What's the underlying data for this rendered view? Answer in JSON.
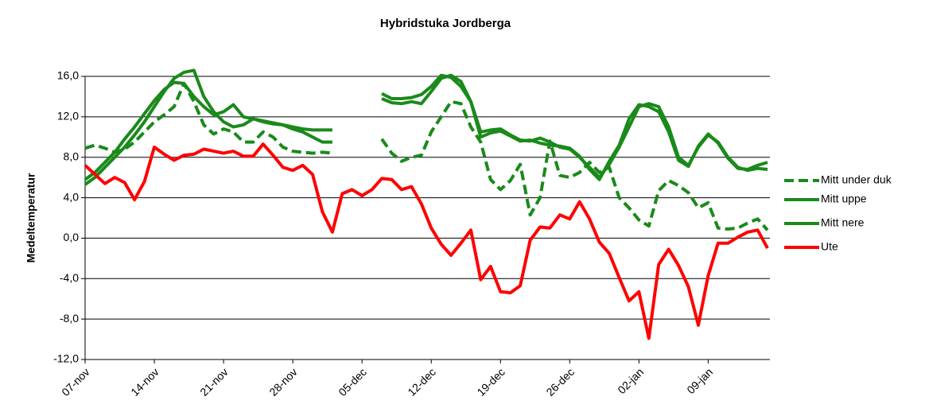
{
  "chart_data": {
    "type": "line",
    "title": "Hybridstuka Jordberga",
    "y_label": "Medeltemperatur",
    "categories": [
      "07-nov",
      null,
      null,
      null,
      null,
      null,
      null,
      "14-nov",
      null,
      null,
      null,
      null,
      null,
      null,
      "21-nov",
      null,
      null,
      null,
      null,
      null,
      null,
      "28-nov",
      null,
      null,
      null,
      null,
      null,
      null,
      "05-dec",
      null,
      null,
      null,
      null,
      null,
      null,
      "12-dec",
      null,
      null,
      null,
      null,
      null,
      null,
      "19-dec",
      null,
      null,
      null,
      null,
      null,
      null,
      "26-dec",
      null,
      null,
      null,
      null,
      null,
      null,
      "02-jan",
      null,
      null,
      null,
      null,
      null,
      null,
      "09-jan",
      null,
      null,
      null,
      null,
      null,
      null
    ],
    "series": [
      {
        "name": "Mitt under duk",
        "color": "#1a8a1a",
        "dashed": true,
        "values": [
          8.9,
          9.2,
          8.9,
          8.5,
          8.8,
          9.5,
          10.5,
          11.5,
          12.2,
          13.0,
          15.3,
          13.5,
          11.2,
          10.3,
          10.8,
          10.5,
          9.5,
          9.5,
          10.5,
          10.0,
          9.0,
          8.6,
          8.5,
          8.4,
          8.5,
          8.4,
          null,
          null,
          null,
          null,
          9.8,
          8.4,
          7.6,
          8.0,
          8.2,
          10.5,
          12.0,
          13.5,
          13.3,
          11.0,
          9.5,
          5.8,
          4.8,
          5.7,
          7.3,
          2.3,
          4.0,
          9.6,
          6.2,
          6.0,
          6.5,
          7.5,
          6.5,
          7.0,
          4.0,
          3.0,
          1.8,
          1.2,
          4.7,
          5.7,
          5.2,
          4.5,
          3.0,
          3.5,
          1.0,
          0.9,
          1.0,
          1.5,
          1.9,
          0.8
        ]
      },
      {
        "name": "Mitt uppe",
        "color": "#1a8a1a",
        "dashed": false,
        "values": [
          5.3,
          6.0,
          7.0,
          8.0,
          9.0,
          10.2,
          11.5,
          13.0,
          14.5,
          15.8,
          16.4,
          16.6,
          14.0,
          12.5,
          11.5,
          11.0,
          11.2,
          11.8,
          11.5,
          11.3,
          11.2,
          10.8,
          10.5,
          10.0,
          9.5,
          9.5,
          null,
          null,
          null,
          null,
          14.3,
          13.8,
          13.8,
          13.9,
          14.2,
          15.0,
          16.1,
          15.9,
          15.0,
          13.5,
          10.5,
          10.7,
          10.8,
          10.2,
          9.7,
          9.6,
          9.9,
          9.5,
          9.0,
          8.8,
          8.0,
          7.0,
          6.0,
          7.3,
          9.0,
          11.0,
          13.0,
          13.3,
          13.0,
          11.0,
          8.0,
          7.2,
          9.0,
          10.2,
          9.5,
          8.0,
          7.0,
          6.7,
          6.9,
          6.8
        ]
      },
      {
        "name": "Mitt nere",
        "color": "#1a8a1a",
        "dashed": false,
        "values": [
          5.8,
          6.5,
          7.5,
          8.5,
          9.8,
          11.0,
          12.3,
          13.6,
          14.7,
          15.4,
          15.3,
          14.0,
          13.0,
          12.2,
          12.5,
          13.2,
          12.0,
          11.8,
          11.6,
          11.4,
          11.2,
          11.0,
          10.8,
          10.7,
          10.7,
          10.7,
          null,
          null,
          null,
          null,
          13.8,
          13.4,
          13.3,
          13.5,
          13.3,
          14.5,
          15.8,
          16.1,
          15.5,
          13.5,
          10.0,
          10.4,
          10.6,
          10.1,
          9.6,
          9.7,
          9.4,
          9.2,
          9.1,
          8.9,
          8.1,
          6.8,
          5.8,
          7.6,
          9.2,
          11.8,
          13.2,
          13.0,
          12.5,
          10.5,
          7.7,
          7.1,
          9.1,
          10.3,
          9.4,
          7.9,
          6.9,
          6.8,
          7.2,
          7.5
        ]
      },
      {
        "name": "Ute",
        "color": "#ff0000",
        "dashed": false,
        "values": [
          7.2,
          6.3,
          5.4,
          6.0,
          5.5,
          3.8,
          5.6,
          9.0,
          8.3,
          7.7,
          8.2,
          8.3,
          8.8,
          8.6,
          8.4,
          8.6,
          8.1,
          8.1,
          9.3,
          8.2,
          7.0,
          6.7,
          7.2,
          6.3,
          2.6,
          0.6,
          4.4,
          4.8,
          4.2,
          4.8,
          5.9,
          5.8,
          4.8,
          5.1,
          3.4,
          1.0,
          -0.6,
          -1.7,
          -0.5,
          0.8,
          -4.1,
          -2.8,
          -5.3,
          -5.4,
          -4.7,
          -0.2,
          1.1,
          1.0,
          2.3,
          1.9,
          3.6,
          1.9,
          -0.4,
          -1.5,
          -3.9,
          -6.2,
          -5.3,
          -9.9,
          -2.6,
          -1.1,
          -2.7,
          -4.8,
          -8.6,
          -3.7,
          -0.5,
          -0.5,
          0.1,
          0.6,
          0.8,
          -1.0
        ]
      }
    ],
    "ylim": [
      -12,
      16
    ],
    "yticks": [
      {
        "value": -12,
        "label": "-12,0"
      },
      {
        "value": -8,
        "label": "-8,0"
      },
      {
        "value": -4,
        "label": "-4,0"
      },
      {
        "value": 0,
        "label": "0,0"
      },
      {
        "value": 4,
        "label": "4,0"
      },
      {
        "value": 8,
        "label": "8,0"
      },
      {
        "value": 12,
        "label": "12,0"
      },
      {
        "value": 16,
        "label": "16,0"
      }
    ],
    "grid": true,
    "legend": "right"
  }
}
